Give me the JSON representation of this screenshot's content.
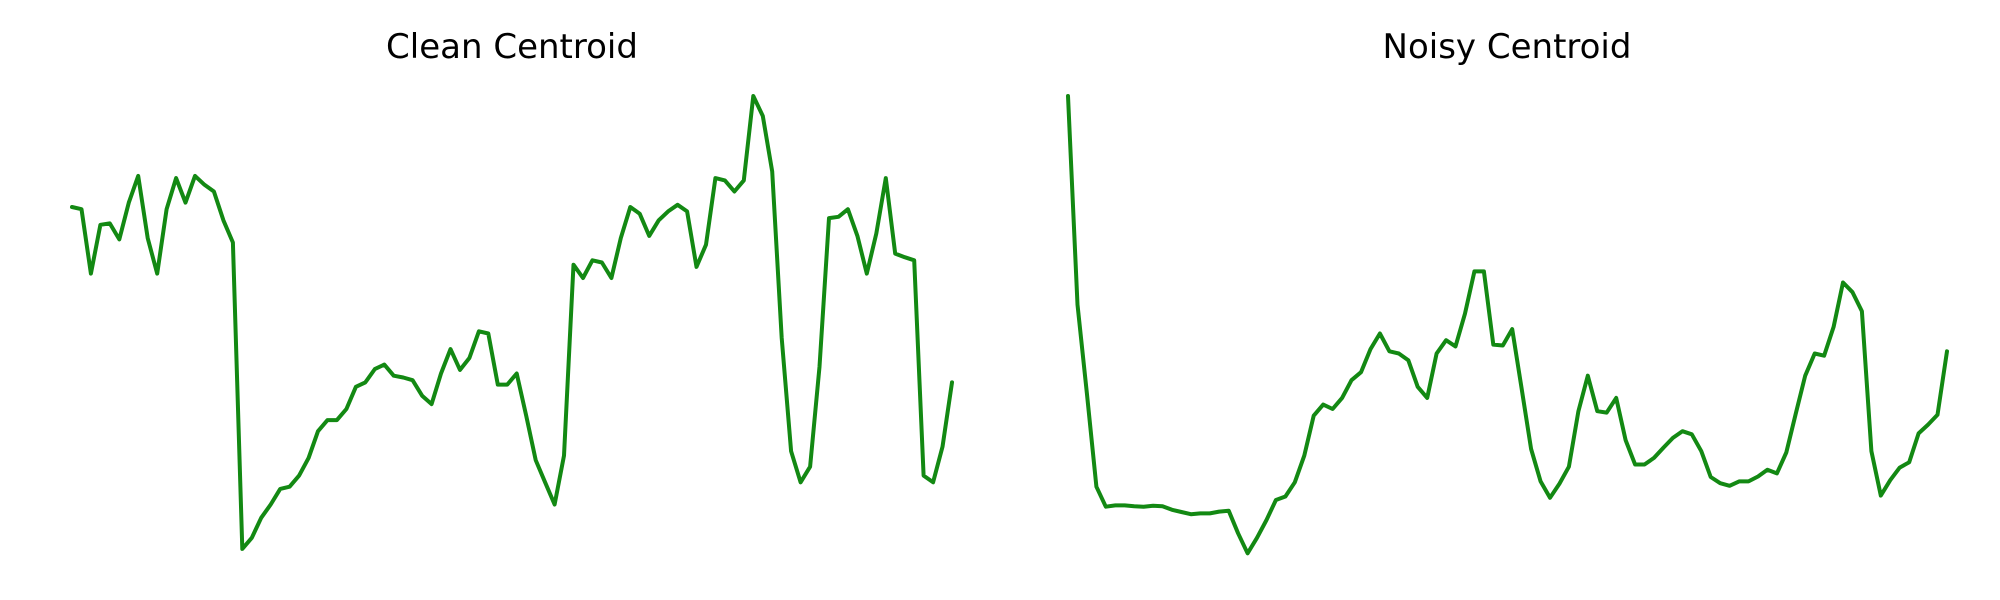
{
  "colors": {
    "line": "#138913",
    "background": "#ffffff",
    "text": "#000000"
  },
  "chart_data": [
    {
      "type": "line",
      "title": "Clean Centroid",
      "xlabel": "",
      "ylabel": "",
      "axes_visible": false,
      "grid": false,
      "legend": "none",
      "ylim": [
        0,
        1
      ],
      "series": [
        {
          "values": [
            0.75,
            0.745,
            0.6,
            0.71,
            0.713,
            0.677,
            0.76,
            0.82,
            0.68,
            0.6,
            0.745,
            0.815,
            0.76,
            0.82,
            0.8,
            0.785,
            0.72,
            0.67,
            -0.02,
            0.005,
            0.05,
            0.08,
            0.115,
            0.12,
            0.145,
            0.185,
            0.245,
            0.27,
            0.27,
            0.295,
            0.345,
            0.355,
            0.385,
            0.395,
            0.37,
            0.366,
            0.36,
            0.325,
            0.306,
            0.375,
            0.43,
            0.383,
            0.41,
            0.47,
            0.465,
            0.35,
            0.35,
            0.375,
            0.28,
            0.18,
            0.13,
            0.08,
            0.19,
            0.62,
            0.59,
            0.63,
            0.625,
            0.59,
            0.68,
            0.75,
            0.735,
            0.685,
            0.72,
            0.74,
            0.755,
            0.74,
            0.615,
            0.665,
            0.815,
            0.81,
            0.785,
            0.81,
            1.0,
            0.955,
            0.83,
            0.455,
            0.2,
            0.13,
            0.165,
            0.39,
            0.725,
            0.728,
            0.745,
            0.685,
            0.6,
            0.69,
            0.815,
            0.645,
            0.637,
            0.63,
            0.145,
            0.13,
            0.21,
            0.355
          ]
        }
      ]
    },
    {
      "type": "line",
      "title": "Noisy Centroid",
      "xlabel": "",
      "ylabel": "",
      "axes_visible": false,
      "grid": false,
      "legend": "none",
      "ylim": [
        0,
        1
      ],
      "series": [
        {
          "values": [
            1.0,
            0.53,
            0.33,
            0.12,
            0.075,
            0.078,
            0.078,
            0.076,
            0.075,
            0.077,
            0.076,
            0.068,
            0.063,
            0.058,
            0.06,
            0.06,
            0.064,
            0.066,
            0.015,
            -0.03,
            0.005,
            0.045,
            0.09,
            0.098,
            0.13,
            0.19,
            0.28,
            0.305,
            0.295,
            0.32,
            0.36,
            0.378,
            0.43,
            0.465,
            0.425,
            0.42,
            0.405,
            0.345,
            0.32,
            0.42,
            0.45,
            0.436,
            0.51,
            0.605,
            0.605,
            0.44,
            0.438,
            0.475,
            0.34,
            0.205,
            0.132,
            0.095,
            0.127,
            0.165,
            0.29,
            0.37,
            0.29,
            0.287,
            0.32,
            0.225,
            0.17,
            0.17,
            0.185,
            0.208,
            0.23,
            0.245,
            0.238,
            0.2,
            0.142,
            0.128,
            0.122,
            0.132,
            0.132,
            0.143,
            0.158,
            0.15,
            0.197,
            0.285,
            0.37,
            0.42,
            0.415,
            0.48,
            0.58,
            0.558,
            0.515,
            0.2,
            0.1,
            0.135,
            0.163,
            0.175,
            0.24,
            0.26,
            0.282,
            0.425
          ]
        }
      ]
    }
  ]
}
